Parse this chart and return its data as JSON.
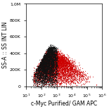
{
  "xlabel": "c-Myc Purified/ GAM APC",
  "ylabel": "SS-A :: SS INT LIN",
  "xlim_log": [
    1,
    6
  ],
  "ylim": [
    0,
    1000000
  ],
  "yticks": [
    0,
    200000,
    400000,
    600000,
    800000,
    1000000
  ],
  "ytick_labels": [
    "0",
    "200K",
    "400K",
    "600K",
    "800K",
    "1,0M"
  ],
  "xtick_positions": [
    1,
    2,
    3,
    4,
    5,
    6
  ],
  "background_color": "#ffffff",
  "black_color": "#111111",
  "red_color": "#cc0000",
  "dot_size": 0.8,
  "dot_alpha": 0.7,
  "axis_fontsize": 5.5,
  "tick_fontsize": 4.5
}
